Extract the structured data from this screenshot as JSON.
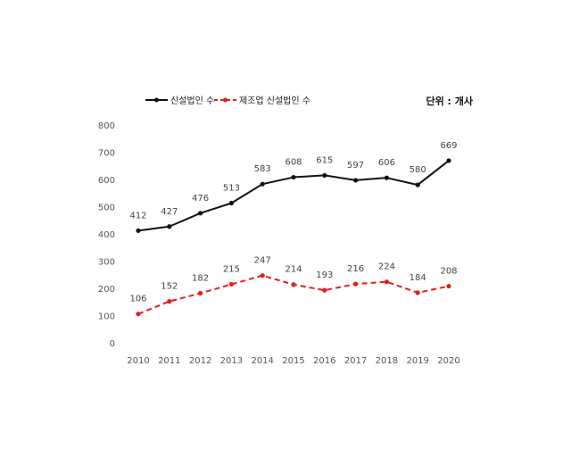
{
  "chart_data": {
    "type": "line",
    "categories": [
      "2010",
      "2011",
      "2012",
      "2013",
      "2014",
      "2015",
      "2016",
      "2017",
      "2018",
      "2019",
      "2020"
    ],
    "series": [
      {
        "name": "신설법인 수",
        "values": [
          412,
          427,
          476,
          513,
          583,
          608,
          615,
          597,
          606,
          580,
          669
        ],
        "color": "#111111",
        "style": "solid"
      },
      {
        "name": "제조업 신설법인 수",
        "values": [
          106,
          152,
          182,
          215,
          247,
          214,
          193,
          216,
          224,
          184,
          208
        ],
        "color": "#e0201b",
        "style": "dashed"
      }
    ],
    "unit_label": "단위 : 개사",
    "yticks": [
      0,
      100,
      200,
      300,
      400,
      500,
      600,
      700,
      800
    ],
    "ylim": [
      0,
      800
    ],
    "grid": false,
    "legend_position": "top-left"
  }
}
